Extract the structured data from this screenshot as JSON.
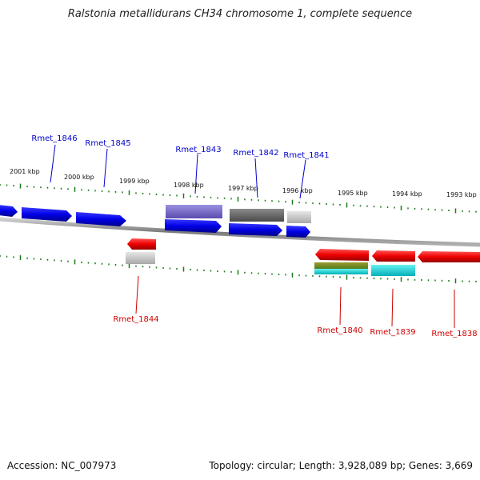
{
  "title": "Ralstonia metallidurans CH34 chromosome 1, complete sequence",
  "footer": {
    "accession": "Accession: NC_007973",
    "summary": "Topology: circular; Length: 3,928,089 bp; Genes: 3,669"
  },
  "colors": {
    "top_label": "#0000cc",
    "bottom_label": "#cc0000",
    "ticks": "#1a7a1a",
    "backbone": "#888888"
  },
  "scale_labels": [
    "2001 kbp",
    "2000 kbp",
    "1999 kbp",
    "1998 kbp",
    "1997 kbp",
    "1996 kbp",
    "1995 kbp",
    "1994 kbp",
    "1993 kbp"
  ],
  "top_genes": [
    "Rmet_1846",
    "Rmet_1845",
    "Rmet_1843",
    "Rmet_1842",
    "Rmet_1841"
  ],
  "bottom_genes": [
    "Rmet_1844",
    "Rmet_1840",
    "Rmet_1839",
    "Rmet_1838"
  ]
}
